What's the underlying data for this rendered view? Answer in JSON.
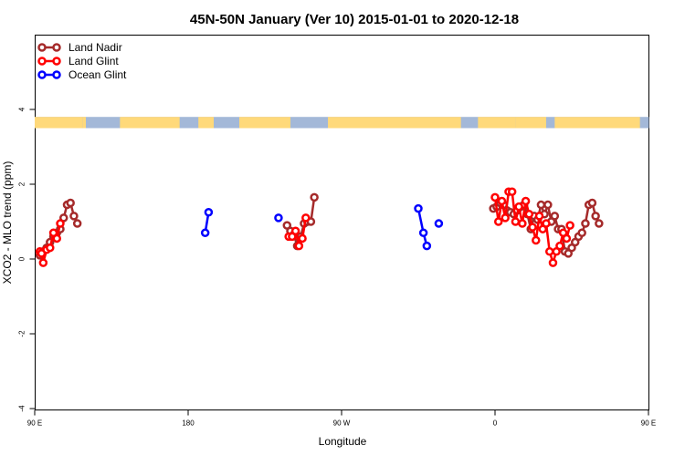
{
  "chart_data": {
    "type": "line",
    "title": "45N-50N January (Ver 10)   2015-01-01 to 2020-12-18",
    "xlabel": "Longitude",
    "ylabel": "XCO2 - MLO trend (ppm)",
    "xlim": [
      90,
      450
    ],
    "ylim": [
      -4,
      6
    ],
    "x_ticks": [
      {
        "value": 90,
        "label": "90 E"
      },
      {
        "value": 180,
        "label": "180"
      },
      {
        "value": 270,
        "label": "90 W"
      },
      {
        "value": 360,
        "label": "0"
      },
      {
        "value": 450,
        "label": "90 E"
      },
      {
        "value": 540,
        "label": "180"
      }
    ],
    "y_ticks": [
      {
        "value": -4,
        "label": "-4"
      },
      {
        "value": -2,
        "label": "-2"
      },
      {
        "value": 0,
        "label": "0"
      },
      {
        "value": 2,
        "label": "2"
      },
      {
        "value": 4,
        "label": "4"
      }
    ],
    "legend_position": "top-left",
    "grid": false,
    "map_strip": {
      "y_range": [
        3.5,
        3.8
      ],
      "land_color": "#FFD97A",
      "ocean_color": "#A3B8D8"
    },
    "series": [
      {
        "name": "Land Nadir",
        "color": "#A52A2A",
        "segments": [
          [
            [
              93,
              0.1
            ],
            [
              95,
              0.2
            ],
            [
              97,
              0.3
            ],
            [
              99,
              0.45
            ],
            [
              101,
              0.6
            ],
            [
              103,
              0.7
            ],
            [
              105,
              0.8
            ],
            [
              107,
              1.1
            ],
            [
              109,
              1.45
            ],
            [
              111,
              1.5
            ],
            [
              113,
              1.15
            ],
            [
              115,
              0.95
            ]
          ],
          [
            [
              238,
              0.9
            ],
            [
              240,
              0.75
            ],
            [
              242,
              0.65
            ],
            [
              244,
              0.35
            ],
            [
              246,
              0.6
            ],
            [
              248,
              0.95
            ],
            [
              250,
              1.0
            ],
            [
              252,
              1.0
            ],
            [
              254,
              1.65
            ]
          ],
          [
            [
              359,
              1.35
            ],
            [
              361,
              1.4
            ],
            [
              363,
              1.5
            ],
            [
              365,
              1.45
            ],
            [
              367,
              1.3
            ],
            [
              369,
              1.25
            ],
            [
              371,
              1.2
            ],
            [
              373,
              1.3
            ],
            [
              375,
              1.4
            ],
            [
              377,
              1.45
            ],
            [
              379,
              1.2
            ],
            [
              381,
              0.8
            ],
            [
              383,
              1.15
            ],
            [
              385,
              1.05
            ],
            [
              387,
              1.45
            ],
            [
              389,
              1.2
            ],
            [
              391,
              1.45
            ],
            [
              393,
              1.0
            ],
            [
              395,
              1.15
            ],
            [
              397,
              0.8
            ],
            [
              399,
              0.8
            ],
            [
              401,
              0.2
            ],
            [
              403,
              0.15
            ],
            [
              405,
              0.3
            ],
            [
              407,
              0.45
            ],
            [
              409,
              0.6
            ],
            [
              411,
              0.7
            ],
            [
              413,
              0.95
            ],
            [
              415,
              1.45
            ],
            [
              417,
              1.5
            ],
            [
              419,
              1.15
            ],
            [
              421,
              0.95
            ]
          ]
        ]
      },
      {
        "name": "Land Glint",
        "color": "#FF0000",
        "segments": [
          [
            [
              93,
              0.2
            ],
            [
              94,
              0.15
            ],
            [
              95,
              -0.1
            ],
            [
              97,
              0.25
            ],
            [
              99,
              0.3
            ],
            [
              101,
              0.7
            ],
            [
              103,
              0.55
            ],
            [
              105,
              0.95
            ]
          ],
          [
            [
              239,
              0.6
            ],
            [
              241,
              0.6
            ],
            [
              243,
              0.75
            ],
            [
              245,
              0.35
            ],
            [
              247,
              0.55
            ],
            [
              249,
              1.1
            ]
          ],
          [
            [
              360,
              1.65
            ],
            [
              362,
              1.0
            ],
            [
              364,
              1.55
            ],
            [
              366,
              1.1
            ],
            [
              368,
              1.8
            ],
            [
              370,
              1.8
            ],
            [
              372,
              1.0
            ],
            [
              374,
              1.4
            ],
            [
              376,
              0.95
            ],
            [
              378,
              1.55
            ],
            [
              380,
              1.2
            ],
            [
              382,
              0.85
            ],
            [
              384,
              0.5
            ],
            [
              386,
              1.15
            ],
            [
              388,
              0.8
            ],
            [
              390,
              0.95
            ],
            [
              392,
              0.2
            ],
            [
              394,
              -0.1
            ],
            [
              396,
              0.2
            ],
            [
              398,
              0.35
            ],
            [
              400,
              0.7
            ],
            [
              402,
              0.55
            ],
            [
              404,
              0.9
            ]
          ]
        ]
      },
      {
        "name": "Ocean Glint",
        "color": "#0000FF",
        "segments": [
          [
            [
              190,
              0.7
            ],
            [
              192,
              1.25
            ]
          ],
          [
            [
              233,
              1.1
            ]
          ],
          [
            [
              315,
              1.35
            ],
            [
              318,
              0.7
            ],
            [
              320,
              0.35
            ]
          ],
          [
            [
              327,
              0.95
            ]
          ]
        ]
      }
    ]
  }
}
